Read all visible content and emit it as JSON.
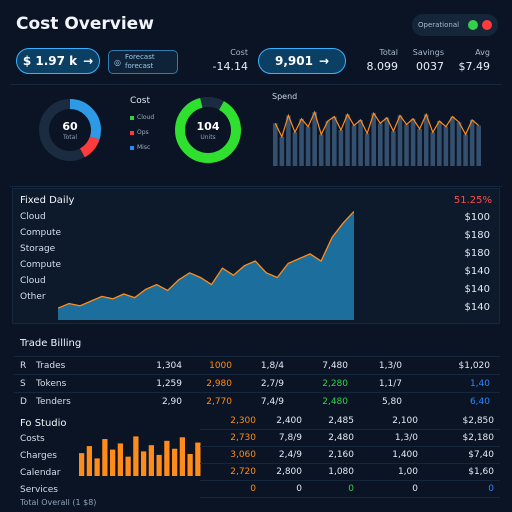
{
  "header": {
    "title": "Cost Overview",
    "status_label": "Operational",
    "dot_colors": [
      "#35d04a",
      "#ff3b3b"
    ]
  },
  "kpis": {
    "pill1": "$ 1.97 k",
    "pill2": "9,901",
    "forecast_button": "Forecast forecast",
    "stat1_label": "Cost",
    "stat1_value": "-14.14",
    "stat2_label": "Total",
    "stat2_value": "8.099",
    "stat3_label": "Savings",
    "stat3_value": "0037",
    "stat4_label": "Avg",
    "stat4_value": "$7.49"
  },
  "donuts": {
    "donut1_value": "60",
    "donut1_sub": "Total",
    "donut2_value": "104",
    "donut2_sub": "Units",
    "legend_title": "Cost",
    "legend": [
      {
        "label": "Cloud",
        "color": "#35d04a"
      },
      {
        "label": "Ops",
        "color": "#ff3b3b"
      },
      {
        "label": "Misc",
        "color": "#2f86ff"
      }
    ]
  },
  "mini_chart_title": "Spend",
  "area_section": {
    "title": "Fixed Daily",
    "change": "51.25%",
    "left_labels": [
      "Cloud",
      "Compute",
      "Storage",
      "Compute",
      "Cloud",
      "Other"
    ],
    "right_labels": [
      "$100",
      "$180",
      "$180",
      "$140",
      "$140",
      "$140"
    ]
  },
  "table": {
    "title": "Trade Billing",
    "rows": [
      {
        "key": "R",
        "name": "Trades",
        "c1": "1,304",
        "c2": "1000",
        "c3": "1,8/4",
        "c4": "7,480",
        "c5": "1,3/0",
        "c6": "$1,020"
      },
      {
        "key": "S",
        "name": "Tokens",
        "c1": "1,259",
        "c2": "2,980",
        "c3": "2,7/9",
        "c4": "2,280",
        "c5": "1,1/7",
        "c6": "1,40"
      },
      {
        "key": "D",
        "name": "Tenders",
        "c1": "2,90",
        "c2": "2,770",
        "c3": "7,4/9",
        "c4": "2,480",
        "c5": "5,80",
        "c6": "6,40"
      }
    ]
  },
  "bottom": {
    "title": "Fo Studio",
    "labels": [
      "Costs",
      "Charges",
      "Calendar",
      "Services"
    ],
    "c2": [
      "2,300",
      "2,730",
      "3,060",
      "2,720",
      "0"
    ],
    "c3": [
      "2,400",
      "7,8/9",
      "2,4/9",
      "2,800",
      "0"
    ],
    "c4": [
      "2,485",
      "2,480",
      "2,160",
      "1,080",
      "0"
    ],
    "c5": [
      "2,100",
      "1,3/0",
      "1,400",
      "1,00",
      "0"
    ],
    "c6": [
      "$2,850",
      "$2,180",
      "$7,40",
      "$1,60",
      "0"
    ],
    "footer_text": "Total Overall (1 $8)"
  },
  "mini_chart_data": {
    "type": "bar",
    "values": [
      38,
      26,
      45,
      30,
      42,
      35,
      48,
      28,
      40,
      44,
      32,
      46,
      36,
      41,
      29,
      47,
      38,
      43,
      31,
      45,
      37,
      42,
      33,
      46,
      30,
      40,
      35,
      44,
      39,
      28,
      41,
      36
    ]
  },
  "chart_data": {
    "type": "area",
    "x": [
      1,
      2,
      3,
      4,
      5,
      6,
      7,
      8,
      9,
      10,
      11,
      12,
      13,
      14,
      15,
      16,
      17,
      18,
      19,
      20,
      21,
      22,
      23,
      24,
      25,
      26,
      27,
      28
    ],
    "values": [
      10,
      14,
      12,
      16,
      20,
      18,
      22,
      19,
      26,
      30,
      25,
      34,
      40,
      36,
      30,
      44,
      38,
      46,
      50,
      40,
      36,
      48,
      52,
      56,
      50,
      70,
      82,
      92
    ]
  },
  "bar_chart": {
    "type": "bar",
    "values": [
      52,
      68,
      40,
      84,
      60,
      74,
      44,
      90,
      56,
      70,
      48,
      80,
      62,
      88,
      50,
      76
    ]
  }
}
